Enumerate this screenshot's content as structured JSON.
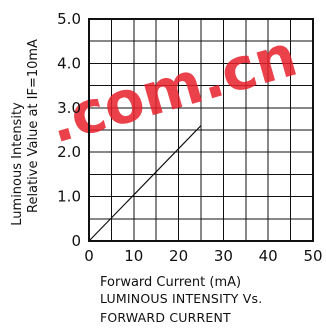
{
  "chart_data": {
    "type": "line",
    "xlabel": "Forward Current (mA)",
    "ylabel": [
      "Luminous Intensity",
      "Relative Value at IF=10mA"
    ],
    "caption": [
      "LUMINOUS INTENSITY Vs.",
      "FORWARD CURRENT"
    ],
    "xlim": [
      0,
      50
    ],
    "ylim": [
      0,
      5
    ],
    "x_ticks": [
      0,
      10,
      20,
      30,
      40,
      50
    ],
    "x_tick_labels": [
      "0",
      "10",
      "20",
      "30",
      "40",
      "50"
    ],
    "y_ticks": [
      0,
      1,
      2,
      3,
      4,
      5
    ],
    "y_tick_labels": [
      "0",
      "1.0",
      "2.0",
      "3.0",
      "4.0",
      "5.0"
    ],
    "grid": true,
    "minor_y_step": 0.5,
    "series": [
      {
        "x": [
          0,
          25
        ],
        "y": [
          0,
          2.6
        ]
      }
    ]
  },
  "watermark": {
    "text": ".com.cn",
    "color": "#e8202a"
  }
}
